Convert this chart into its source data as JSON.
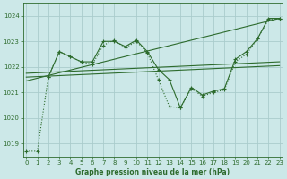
{
  "title": "Graphe pression niveau de la mer (hPa)",
  "bg_color": "#cce8e8",
  "grid_color": "#aacccc",
  "line_color": "#2d6b2d",
  "ylim": [
    1018.5,
    1024.5
  ],
  "yticks": [
    1019,
    1020,
    1021,
    1022,
    1023,
    1024
  ],
  "xlim": [
    -0.3,
    23.3
  ],
  "xticks": [
    0,
    1,
    2,
    3,
    4,
    5,
    6,
    7,
    8,
    9,
    10,
    11,
    12,
    13,
    14,
    15,
    16,
    17,
    18,
    19,
    20,
    21,
    22,
    23
  ],
  "series_dotted_x": [
    0,
    1,
    2,
    3,
    4,
    5,
    6,
    7,
    8,
    9,
    10,
    11,
    12,
    13,
    14,
    15,
    16,
    17,
    18,
    19,
    20,
    21,
    22,
    23
  ],
  "series_dotted_y": [
    1018.7,
    1018.7,
    1021.6,
    1022.6,
    1022.4,
    1022.2,
    1022.1,
    1022.85,
    1023.05,
    1022.75,
    1023.0,
    1022.55,
    1021.5,
    1020.45,
    1020.4,
    1021.15,
    1020.85,
    1021.0,
    1021.1,
    1022.2,
    1022.5,
    1023.1,
    1023.85,
    1023.9
  ],
  "series_solid_x": [
    2,
    3,
    4,
    5,
    6,
    7,
    8,
    9,
    10,
    11,
    12,
    13,
    14,
    15,
    16,
    17,
    18,
    19,
    20,
    21,
    22,
    23
  ],
  "series_solid_y": [
    1021.6,
    1022.6,
    1022.4,
    1022.2,
    1022.2,
    1023.0,
    1023.0,
    1022.8,
    1023.05,
    1022.6,
    1021.9,
    1021.5,
    1020.4,
    1021.2,
    1020.9,
    1021.05,
    1021.15,
    1022.3,
    1022.6,
    1023.1,
    1023.9,
    1023.9
  ],
  "trend1_x": [
    0,
    23
  ],
  "trend1_y": [
    1021.75,
    1022.2
  ],
  "trend2_x": [
    0,
    23
  ],
  "trend2_y": [
    1021.6,
    1022.05
  ],
  "trend3_x": [
    0,
    23
  ],
  "trend3_y": [
    1021.45,
    1023.9
  ]
}
